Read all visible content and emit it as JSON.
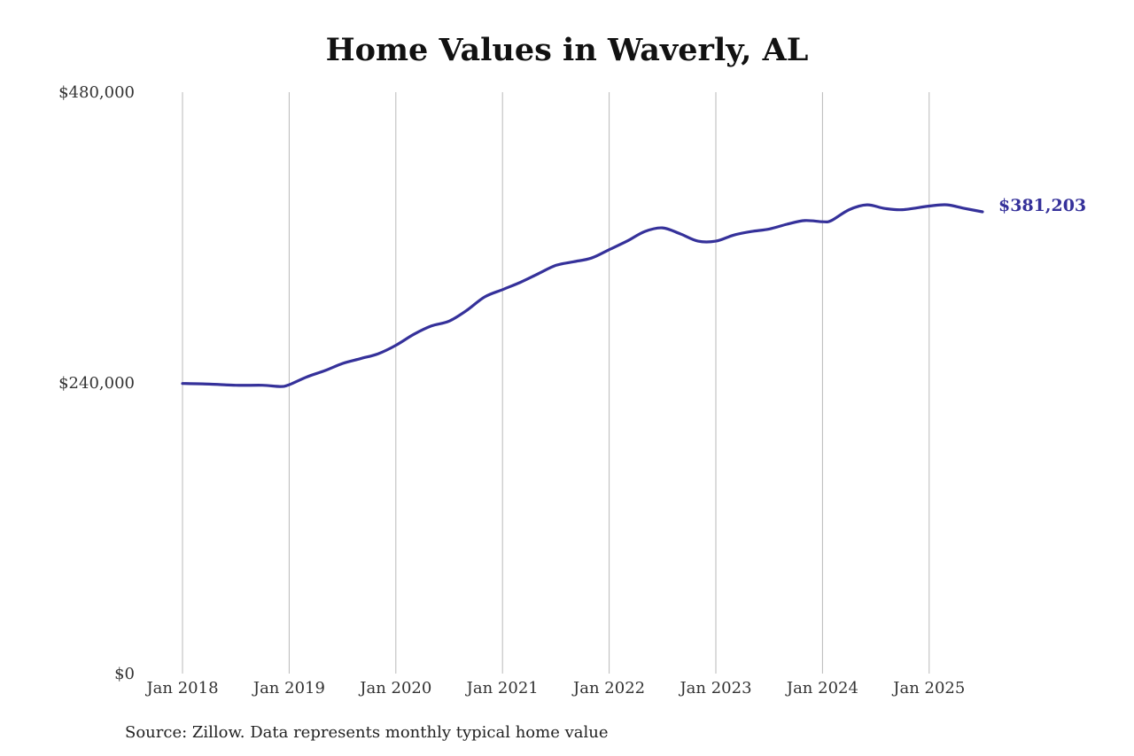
{
  "chart_data": {
    "type": "line",
    "title": "Home Values in Waverly, AL",
    "source": "Source: Zillow. Data represents monthly typical home value",
    "xlabel": "",
    "ylabel": "",
    "ylim": [
      0,
      480000
    ],
    "y_ticks": [
      {
        "value": 0,
        "label": "$0"
      },
      {
        "value": 240000,
        "label": "$240,000"
      },
      {
        "value": 480000,
        "label": "$480,000"
      }
    ],
    "x_ticks": [
      {
        "value": "2018-01",
        "label": "Jan 2018"
      },
      {
        "value": "2019-01",
        "label": "Jan 2019"
      },
      {
        "value": "2020-01",
        "label": "Jan 2020"
      },
      {
        "value": "2021-01",
        "label": "Jan 2021"
      },
      {
        "value": "2022-01",
        "label": "Jan 2022"
      },
      {
        "value": "2023-01",
        "label": "Jan 2023"
      },
      {
        "value": "2024-01",
        "label": "Jan 2024"
      },
      {
        "value": "2025-01",
        "label": "Jan 2025"
      }
    ],
    "grid": "vertical",
    "line_color": "#35319a",
    "end_label": "$381,203",
    "series": [
      {
        "x": [
          "2018-01",
          "2018-04",
          "2018-07",
          "2018-10",
          "2018-12",
          "2019-01",
          "2019-03",
          "2019-05",
          "2019-07",
          "2019-09",
          "2019-11",
          "2020-01",
          "2020-03",
          "2020-05",
          "2020-07",
          "2020-09",
          "2020-11",
          "2021-01",
          "2021-03",
          "2021-05",
          "2021-07",
          "2021-09",
          "2021-11",
          "2022-01",
          "2022-03",
          "2022-05",
          "2022-07",
          "2022-09",
          "2022-11",
          "2023-01",
          "2023-03",
          "2023-05",
          "2023-07",
          "2023-09",
          "2023-11",
          "2024-01",
          "2024-02",
          "2024-04",
          "2024-06",
          "2024-08",
          "2024-10",
          "2025-01",
          "2025-03",
          "2025-05",
          "2025-07"
        ],
        "y": [
          239500,
          239000,
          238000,
          238000,
          237000,
          238500,
          245000,
          250000,
          256000,
          260000,
          264000,
          271000,
          280000,
          287000,
          291000,
          300000,
          311000,
          317000,
          323000,
          330000,
          337000,
          340000,
          343000,
          350000,
          357000,
          365000,
          368000,
          363000,
          357000,
          357000,
          362000,
          365000,
          367000,
          371000,
          374000,
          373000,
          374000,
          383000,
          387000,
          384000,
          383000,
          386000,
          387000,
          384000,
          381203
        ]
      }
    ]
  }
}
